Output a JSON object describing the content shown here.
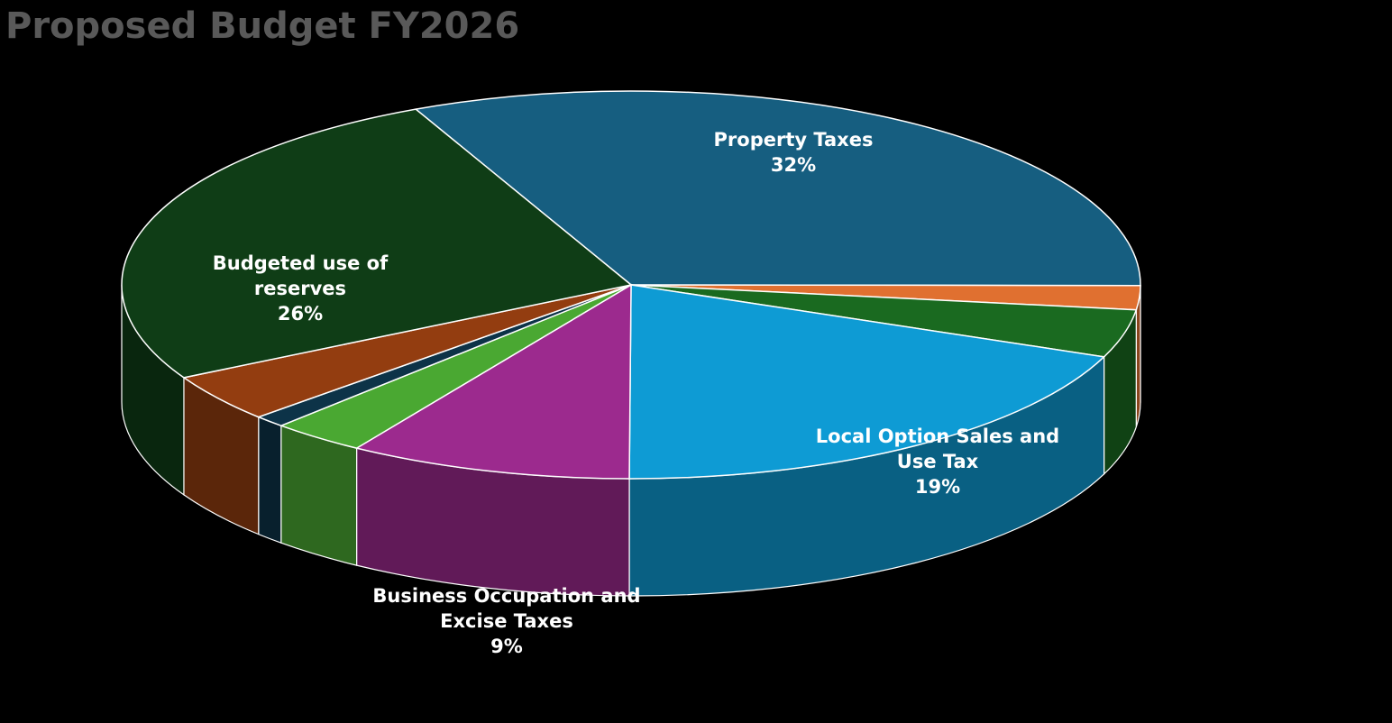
{
  "chart_data": {
    "type": "pie",
    "style": "3d",
    "title": "Proposed Budget FY2026",
    "categories": [
      "Property Taxes",
      null,
      null,
      "Local Option Sales and Use Tax",
      "Business Occupation and Excise Taxes",
      null,
      null,
      null,
      "Budgeted use of reserves"
    ],
    "values": [
      32,
      2,
      4,
      19,
      9,
      3,
      1,
      4,
      26
    ],
    "value_labels": [
      "32%",
      null,
      null,
      "19%",
      "9%",
      null,
      null,
      null,
      "26%"
    ],
    "colors": [
      "#165e80",
      "#e07030",
      "#1a6a20",
      "#0e9bd4",
      "#9c2a8e",
      "#4aa832",
      "#0d3348",
      "#933d10",
      "#0f3d16"
    ]
  }
}
